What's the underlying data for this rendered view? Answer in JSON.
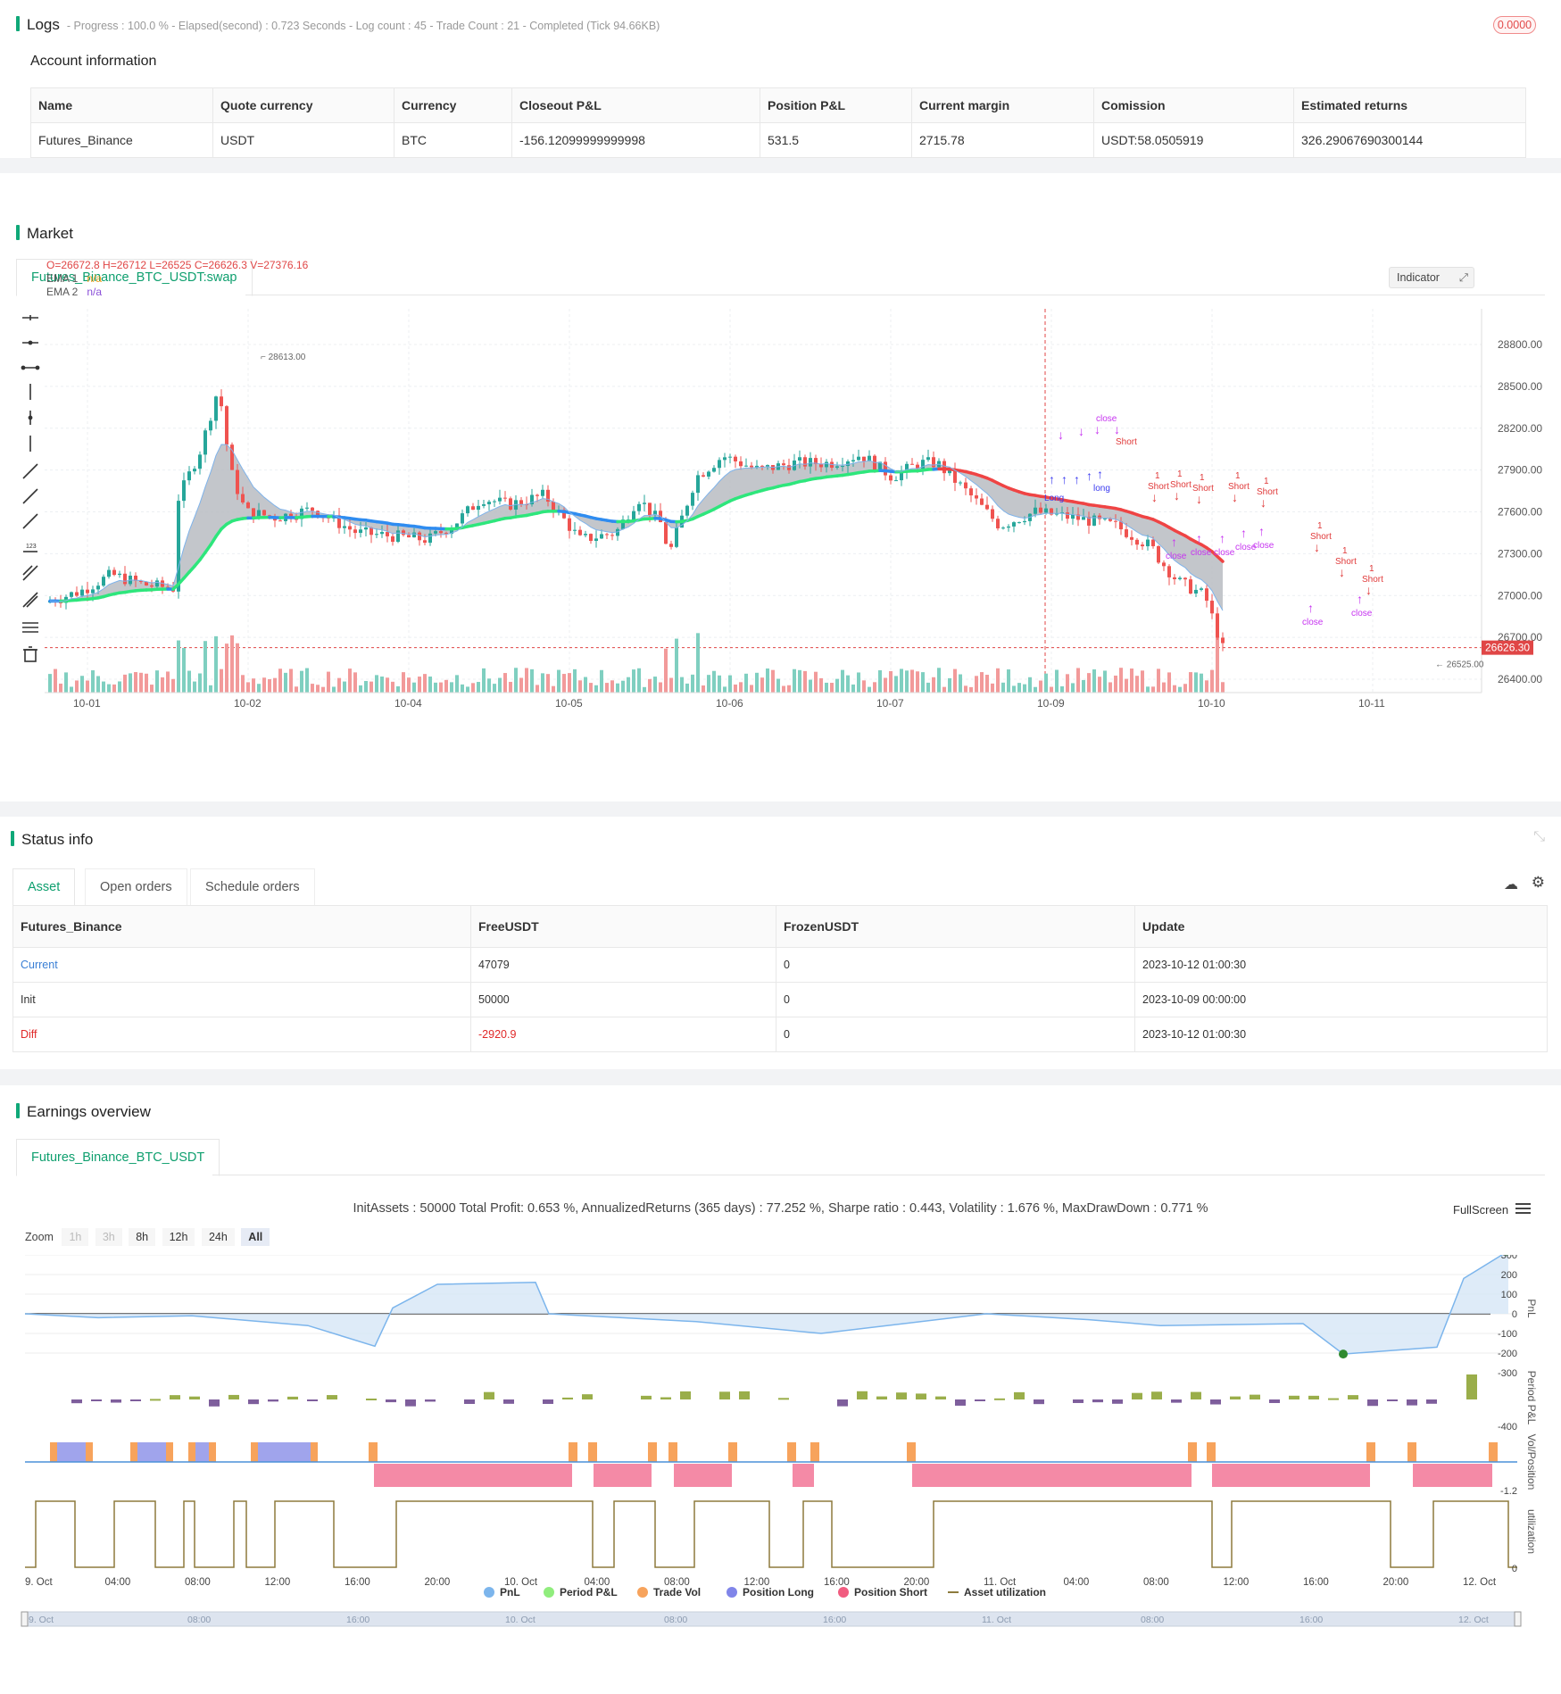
{
  "logs": {
    "title": "Logs",
    "status": "- Progress : 100.0 % - Elapsed(second) : 0.723  Seconds - Log count : 45 - Trade Count : 21 - Completed (Tick 94.66KB)",
    "badge": "0.0000",
    "account_title": "Account information",
    "columns": [
      "Name",
      "Quote currency",
      "Currency",
      "Closeout P&L",
      "Position P&L",
      "Current margin",
      "Comission",
      "Estimated returns"
    ],
    "row": [
      "Futures_Binance",
      "USDT",
      "BTC",
      "-156.12099999999998",
      "531.5",
      "2715.78",
      "USDT:58.0505919",
      "326.29067690300144"
    ]
  },
  "market": {
    "title": "Market",
    "tab": "Futures_Binance_BTC_USDT:swap",
    "ohlc": "O=26672.8 H=26712 L=26525 C=26626.3 V=27376.16",
    "ema1_label": "EMA 1",
    "ema1_value": "n/a",
    "ema2_label": "EMA 2",
    "ema2_value": "n/a",
    "indicator_button": "Indicator",
    "price_ticks": [
      "28800.00",
      "28500.00",
      "28200.00",
      "27900.00",
      "27600.00",
      "27300.00",
      "27000.00",
      "26700.00",
      "26400.00"
    ],
    "date_ticks": [
      "10-01",
      "10-02",
      "10-04",
      "10-05",
      "10-06",
      "10-07",
      "10-09",
      "10-10",
      "10-11"
    ],
    "high_label": "28613.00",
    "low_label": "26525.00",
    "current_price": "26626.30",
    "signal_labels": [
      "Long",
      "close",
      "Short",
      "1",
      "long"
    ]
  },
  "status": {
    "title": "Status info",
    "tabs": [
      "Asset",
      "Open orders",
      "Schedule orders"
    ],
    "columns": [
      "Futures_Binance",
      "FreeUSDT",
      "FrozenUSDT",
      "Update"
    ],
    "rows": [
      [
        "Current",
        "47079",
        "0",
        "2023-10-12 01:00:30"
      ],
      [
        "Init",
        "50000",
        "0",
        "2023-10-09 00:00:00"
      ],
      [
        "Diff",
        "-2920.9",
        "0",
        "2023-10-12 01:00:30"
      ]
    ]
  },
  "earnings": {
    "title": "Earnings overview",
    "tab": "Futures_Binance_BTC_USDT",
    "summary": "InitAssets : 50000 Total Profit: 0.653 %, AnnualizedReturns (365 days) : 77.252 %, Sharpe ratio : 0.443, Volatility : 1.676 %, MaxDrawDown : 0.771 %",
    "fullscreen": "FullScreen",
    "zoom_label": "Zoom",
    "zoom_buttons": [
      "1h",
      "3h",
      "8h",
      "12h",
      "24h",
      "All"
    ],
    "pnl_ticks": [
      "300",
      "200",
      "100",
      "0",
      "-100",
      "-200",
      "-300"
    ],
    "period_ticks": [
      "-400"
    ],
    "vol_ticks": [
      "-1.2"
    ],
    "util_ticks": [
      "0"
    ],
    "axis_titles": [
      "PnL",
      "Period P&L",
      "Vol/Position",
      "utilization"
    ],
    "time_ticks": [
      "9. Oct",
      "04:00",
      "08:00",
      "12:00",
      "16:00",
      "20:00",
      "10. Oct",
      "04:00",
      "08:00",
      "12:00",
      "16:00",
      "20:00",
      "11. Oct",
      "04:00",
      "08:00",
      "12:00",
      "16:00",
      "20:00",
      "12. Oct"
    ],
    "legend": [
      {
        "name": "PnL",
        "color": "#7cb5ec"
      },
      {
        "name": "Period P&L",
        "color": "#90ed7d"
      },
      {
        "name": "Trade Vol",
        "color": "#f7a35c"
      },
      {
        "name": "Position Long",
        "color": "#8085e9"
      },
      {
        "name": "Position Short",
        "color": "#f15c80"
      },
      {
        "name": "Asset utilization",
        "color": "#8d7a3d"
      }
    ],
    "navigator_ticks": [
      "9. Oct",
      "08:00",
      "16:00",
      "10. Oct",
      "08:00",
      "16:00",
      "11. Oct",
      "08:00",
      "16:00",
      "12. Oct"
    ]
  },
  "chart_data": {
    "type": "line",
    "series": [
      {
        "name": "PnL",
        "x": [
          "9. Oct 00:00",
          "9. Oct 04:00",
          "9. Oct 08:00",
          "9. Oct 12:00",
          "9. Oct 16:00",
          "9. Oct 18:00",
          "9. Oct 20:00",
          "9. Oct 22:00",
          "10. Oct 00:00",
          "10. Oct 08:00",
          "10. Oct 16:00",
          "11. Oct 00:00",
          "11. Oct 08:00",
          "11. Oct 12:00",
          "11. Oct 16:00",
          "11. Oct 18:00",
          "11. Oct 22:00",
          "12. Oct 00:00",
          "12. Oct 01:00"
        ],
        "values": [
          0,
          -20,
          -10,
          -60,
          -165,
          30,
          150,
          160,
          0,
          -40,
          -100,
          0,
          -30,
          -60,
          -50,
          -205,
          -170,
          180,
          320
        ]
      }
    ],
    "ylim": [
      -300,
      300
    ]
  }
}
